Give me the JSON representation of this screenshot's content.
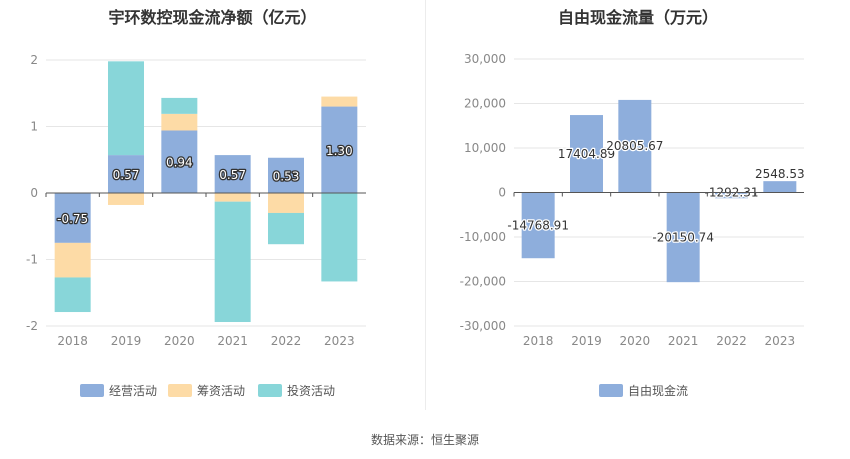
{
  "colors": {
    "operating": "#8eaedc",
    "financing": "#fddba6",
    "investing": "#88d6d9",
    "fcf": "#8eaedc",
    "axis_text": "#888888",
    "grid": "#e6e6e6",
    "axis_line": "#555555"
  },
  "chart_data": [
    {
      "type": "bar",
      "stacked": true,
      "title": "宇环数控现金流净额（亿元）",
      "categories": [
        "2018",
        "2019",
        "2020",
        "2021",
        "2022",
        "2023"
      ],
      "series": [
        {
          "name": "经营活动",
          "values": [
            -0.75,
            0.57,
            0.94,
            0.57,
            0.53,
            1.3
          ]
        },
        {
          "name": "筹资活动",
          "values": [
            -0.52,
            -0.18,
            0.25,
            -0.13,
            -0.3,
            0.15
          ]
        },
        {
          "name": "投资活动",
          "values": [
            -0.52,
            1.41,
            0.24,
            -1.81,
            -0.47,
            -1.33
          ]
        }
      ],
      "data_labels": [
        "-0.75",
        "0.57",
        "0.94",
        "0.57",
        "0.53",
        "1.30"
      ],
      "y_ticks": [
        "2",
        "1",
        "0",
        "-1",
        "-2"
      ],
      "ylim": [
        -2,
        2
      ],
      "grid": true,
      "legend_position": "bottom"
    },
    {
      "type": "bar",
      "title": "自由现金流量（万元）",
      "categories": [
        "2018",
        "2019",
        "2020",
        "2021",
        "2022",
        "2023"
      ],
      "series": [
        {
          "name": "自由现金流",
          "values": [
            -14768.91,
            17404.89,
            20805.67,
            -20150.74,
            -1292.31,
            2548.53
          ]
        }
      ],
      "data_labels": [
        "-14768.91",
        "17404.89",
        "20805.67",
        "-20150.74",
        "-1292.31",
        "2548.53"
      ],
      "y_ticks": [
        "30,000",
        "20,000",
        "10,000",
        "0",
        "-10,000",
        "-20,000",
        "-30,000"
      ],
      "ylim": [
        -30000,
        30000
      ],
      "grid": true,
      "legend_position": "bottom"
    }
  ],
  "source": "数据来源：恒生聚源"
}
